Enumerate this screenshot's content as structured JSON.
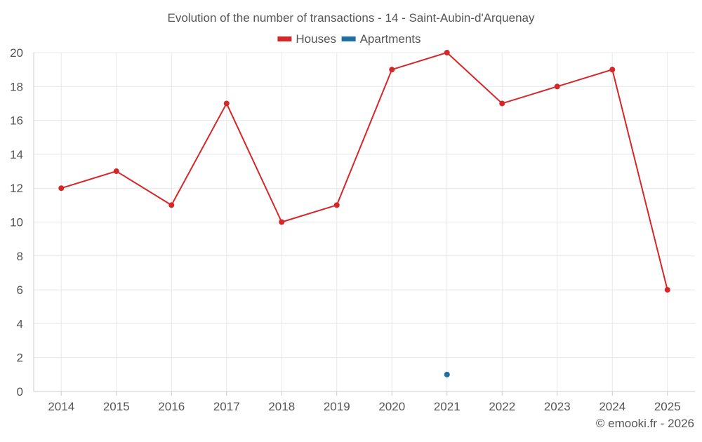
{
  "chart_data": {
    "type": "line",
    "title": "Evolution of the number of transactions - 14 - Saint-Aubin-d'Arquenay",
    "categories": [
      "2014",
      "2015",
      "2016",
      "2017",
      "2018",
      "2019",
      "2020",
      "2021",
      "2022",
      "2023",
      "2024",
      "2025"
    ],
    "series": [
      {
        "name": "Houses",
        "color": "#d62728",
        "values": [
          12,
          13,
          11,
          17,
          10,
          11,
          19,
          20,
          17,
          18,
          19,
          6
        ]
      },
      {
        "name": "Apartments",
        "color": "#1f6fa5",
        "values": [
          null,
          null,
          null,
          null,
          null,
          null,
          null,
          1,
          null,
          null,
          null,
          null
        ]
      }
    ],
    "ylim": [
      0,
      20
    ],
    "yticks": [
      0,
      2,
      4,
      6,
      8,
      10,
      12,
      14,
      16,
      18,
      20
    ],
    "grid": true,
    "legend_position": "top-center",
    "xlabel": "",
    "ylabel": ""
  },
  "credit": "© emooki.fr - 2026"
}
